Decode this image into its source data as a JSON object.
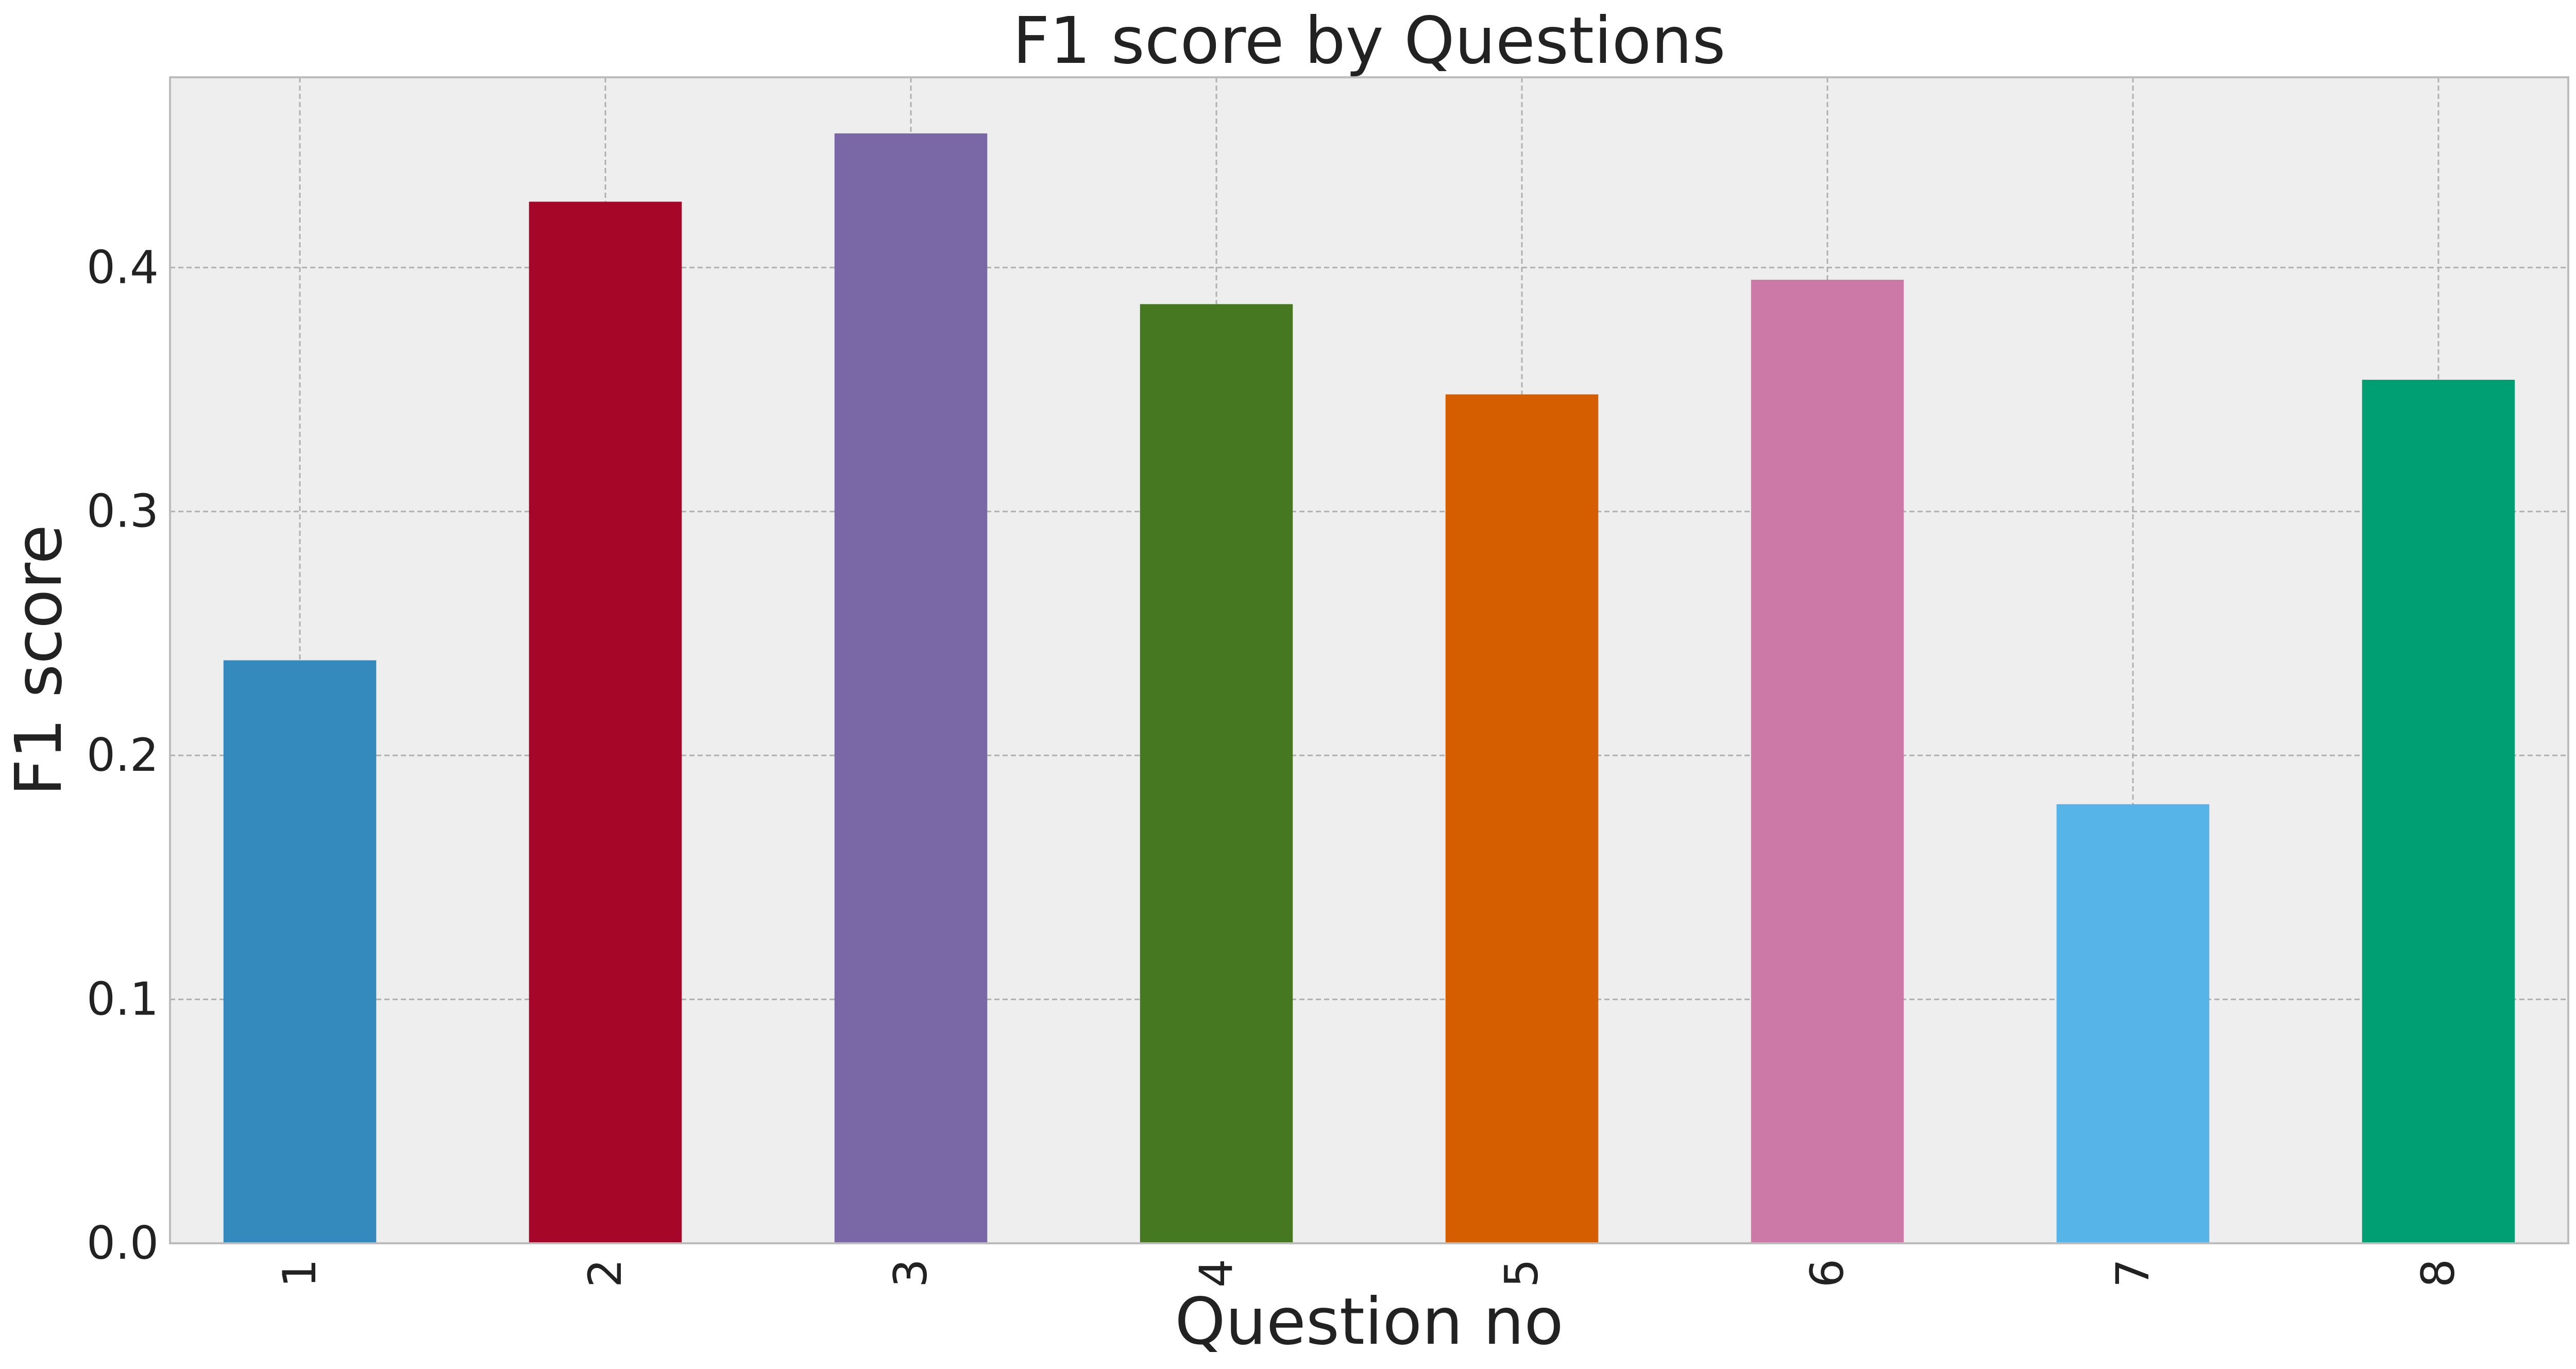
{
  "chart_data": {
    "type": "bar",
    "title": "F1 score by Questions",
    "xlabel": "Question no",
    "ylabel": "F1 score",
    "categories": [
      "1",
      "2",
      "3",
      "4",
      "5",
      "6",
      "7",
      "8"
    ],
    "values": [
      0.239,
      0.427,
      0.455,
      0.385,
      0.348,
      0.395,
      0.18,
      0.354
    ],
    "ylim": [
      0,
      0.478
    ],
    "yticks": [
      0.0,
      0.1,
      0.2,
      0.3,
      0.4
    ],
    "ytick_labels": [
      "0.0",
      "0.1",
      "0.2",
      "0.3",
      "0.4"
    ],
    "grid": true,
    "legend": "none",
    "colors": [
      "#348abd",
      "#a60628",
      "#7a68a6",
      "#467821",
      "#d55e00",
      "#cc79a7",
      "#56b4e9",
      "#009e73"
    ],
    "plot_background": "#eeeeee",
    "grid_color": "#b0b0b0"
  }
}
